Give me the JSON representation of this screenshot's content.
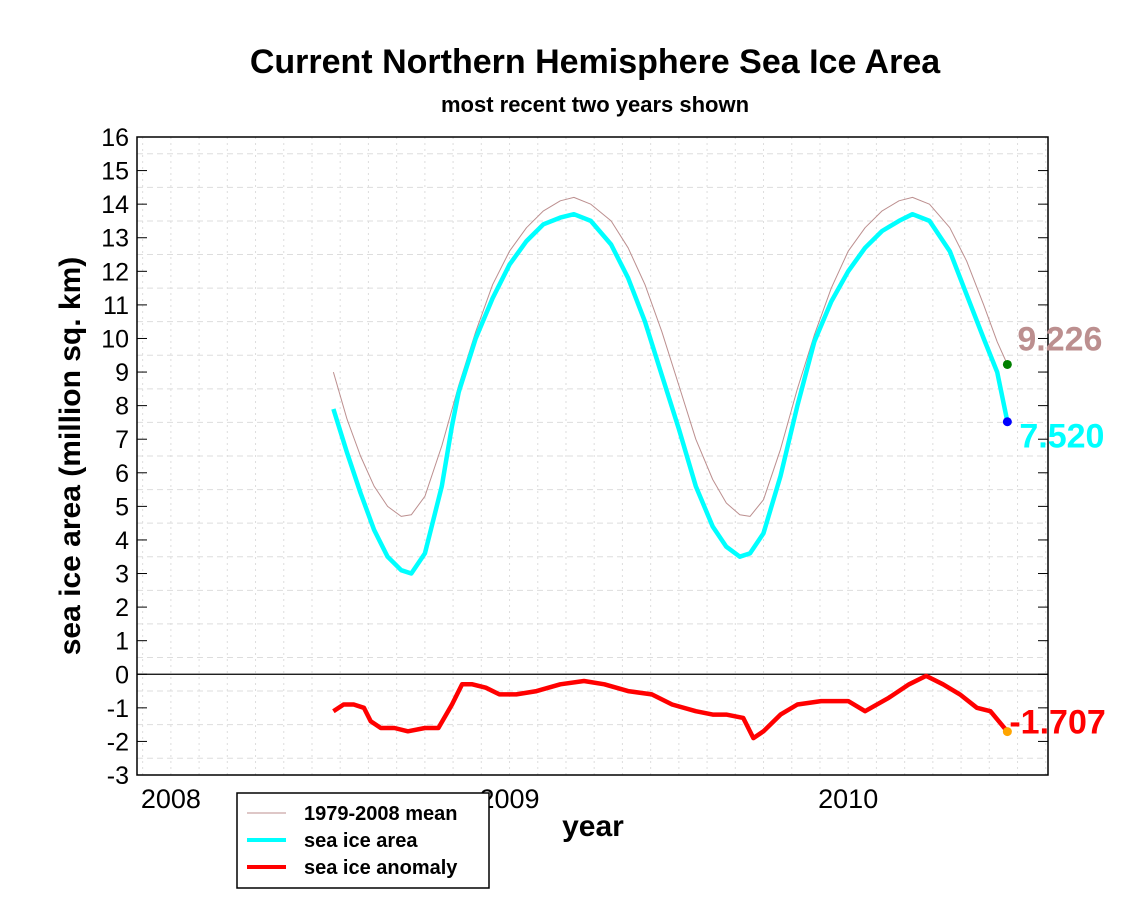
{
  "chart_data": {
    "type": "line",
    "title": "Current Northern Hemisphere Sea Ice Area",
    "subtitle": "most recent two years shown",
    "xlabel": "year",
    "ylabel": "sea ice area (million sq. km)",
    "xlim": [
      2007.9,
      2010.59
    ],
    "ylim": [
      -3,
      16
    ],
    "x_ticks": [
      2008,
      2009,
      2010
    ],
    "y_ticks": [
      -3,
      -2,
      -1,
      0,
      1,
      2,
      3,
      4,
      5,
      6,
      7,
      8,
      9,
      10,
      11,
      12,
      13,
      14,
      15,
      16
    ],
    "grid": true,
    "legend_position": "bottom-left",
    "colors": {
      "mean": "#bc8f8f",
      "area": "#00ffff",
      "anomaly": "#ff0000",
      "mean_end": "#008000",
      "area_end": "#0000ff",
      "anomaly_end": "#ffa500"
    },
    "series": [
      {
        "name": "1979-2008 mean",
        "x": [
          2008.48,
          2008.52,
          2008.56,
          2008.6,
          2008.64,
          2008.68,
          2008.71,
          2008.75,
          2008.8,
          2008.85,
          2008.9,
          2008.95,
          2009.0,
          2009.05,
          2009.1,
          2009.15,
          2009.19,
          2009.24,
          2009.3,
          2009.35,
          2009.4,
          2009.45,
          2009.5,
          2009.55,
          2009.6,
          2009.64,
          2009.68,
          2009.71,
          2009.75,
          2009.8,
          2009.85,
          2009.9,
          2009.95,
          2010.0,
          2010.05,
          2010.1,
          2010.15,
          2010.19,
          2010.24,
          2010.3,
          2010.35,
          2010.4,
          2010.44,
          2010.47
        ],
        "y": [
          9.0,
          7.6,
          6.5,
          5.6,
          5.0,
          4.7,
          4.75,
          5.3,
          6.8,
          8.6,
          10.2,
          11.6,
          12.6,
          13.3,
          13.8,
          14.1,
          14.2,
          14.0,
          13.5,
          12.7,
          11.6,
          10.2,
          8.6,
          7.0,
          5.8,
          5.1,
          4.75,
          4.7,
          5.2,
          6.7,
          8.5,
          10.1,
          11.5,
          12.6,
          13.3,
          13.8,
          14.1,
          14.2,
          14.0,
          13.3,
          12.3,
          11.0,
          9.9,
          9.226
        ]
      },
      {
        "name": "sea ice area",
        "x": [
          2008.48,
          2008.52,
          2008.56,
          2008.6,
          2008.64,
          2008.68,
          2008.71,
          2008.75,
          2008.8,
          2008.83,
          2008.85,
          2008.9,
          2008.95,
          2009.0,
          2009.05,
          2009.1,
          2009.15,
          2009.19,
          2009.24,
          2009.3,
          2009.35,
          2009.4,
          2009.45,
          2009.5,
          2009.55,
          2009.6,
          2009.64,
          2009.68,
          2009.71,
          2009.75,
          2009.8,
          2009.85,
          2009.9,
          2009.95,
          2010.0,
          2010.05,
          2010.1,
          2010.15,
          2010.19,
          2010.24,
          2010.3,
          2010.35,
          2010.4,
          2010.44,
          2010.47
        ],
        "y": [
          7.9,
          6.6,
          5.4,
          4.3,
          3.5,
          3.1,
          3.0,
          3.6,
          5.6,
          7.4,
          8.4,
          10.0,
          11.2,
          12.2,
          12.9,
          13.4,
          13.6,
          13.7,
          13.5,
          12.8,
          11.8,
          10.5,
          8.9,
          7.3,
          5.6,
          4.4,
          3.8,
          3.5,
          3.6,
          4.2,
          5.9,
          8.0,
          9.9,
          11.1,
          12.0,
          12.7,
          13.2,
          13.5,
          13.7,
          13.5,
          12.6,
          11.3,
          10.0,
          9.0,
          7.52
        ]
      },
      {
        "name": "sea ice anomaly",
        "x": [
          2008.48,
          2008.51,
          2008.54,
          2008.57,
          2008.59,
          2008.62,
          2008.66,
          2008.7,
          2008.75,
          2008.79,
          2008.83,
          2008.86,
          2008.89,
          2008.93,
          2008.97,
          2009.02,
          2009.08,
          2009.15,
          2009.22,
          2009.28,
          2009.35,
          2009.42,
          2009.48,
          2009.55,
          2009.6,
          2009.64,
          2009.69,
          2009.72,
          2009.75,
          2009.8,
          2009.85,
          2009.92,
          2010.0,
          2010.05,
          2010.12,
          2010.18,
          2010.23,
          2010.28,
          2010.33,
          2010.38,
          2010.42,
          2010.47
        ],
        "y": [
          -1.1,
          -0.9,
          -0.9,
          -1.0,
          -1.4,
          -1.6,
          -1.6,
          -1.7,
          -1.6,
          -1.6,
          -0.9,
          -0.3,
          -0.3,
          -0.4,
          -0.6,
          -0.6,
          -0.5,
          -0.3,
          -0.2,
          -0.3,
          -0.5,
          -0.6,
          -0.9,
          -1.1,
          -1.2,
          -1.2,
          -1.3,
          -1.9,
          -1.7,
          -1.2,
          -0.9,
          -0.8,
          -0.8,
          -1.1,
          -0.7,
          -0.3,
          -0.05,
          -0.3,
          -0.6,
          -1.0,
          -1.1,
          -1.707
        ]
      }
    ],
    "annotations": [
      {
        "text": "9.226",
        "series": "1979-2008 mean",
        "x": 2010.47,
        "y": 9.226
      },
      {
        "text": "7.520",
        "series": "sea ice area",
        "x": 2010.47,
        "y": 7.52
      },
      {
        "text": "-1.707",
        "series": "sea ice anomaly",
        "x": 2010.47,
        "y": -1.707
      }
    ]
  }
}
